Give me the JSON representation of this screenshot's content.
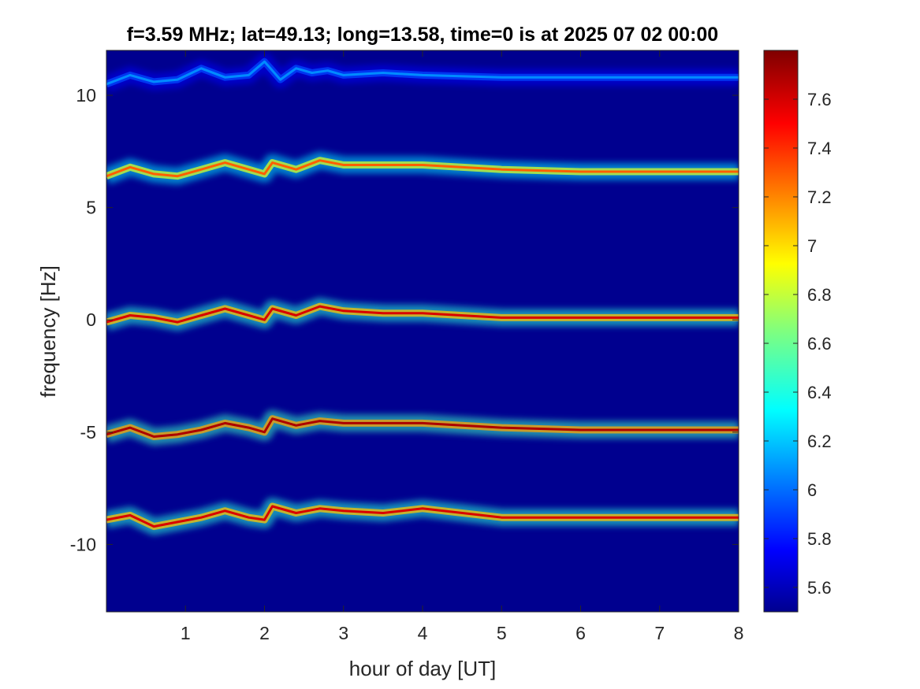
{
  "chart_data": {
    "type": "heatmap",
    "title": "f=3.59 MHz;  lat=49.13; long=13.58, time=0 is at 2025 07 02 00:00",
    "xlabel": "hour of day [UT]",
    "ylabel": "frequency [Hz]",
    "xlim": [
      0,
      8
    ],
    "ylim": [
      -13,
      12
    ],
    "xticks": [
      1,
      2,
      3,
      4,
      5,
      6,
      7,
      8
    ],
    "xtick_labels": [
      "1",
      "2",
      "3",
      "4",
      "5",
      "6",
      "7",
      "8"
    ],
    "yticks": [
      10,
      5,
      0,
      -5,
      -10
    ],
    "ytick_labels": [
      "10",
      "5",
      "0",
      "-5",
      "-10"
    ],
    "colormap": "jet",
    "background_color": "#00008f",
    "colorbar": {
      "range": [
        5.5,
        7.8
      ],
      "ticks": [
        5.6,
        5.8,
        6,
        6.2,
        6.4,
        6.6,
        6.8,
        7,
        7.2,
        7.4,
        7.6
      ],
      "tick_labels": [
        "5.6",
        "5.8",
        "6",
        "6.2",
        "6.4",
        "6.6",
        "6.8",
        "7",
        "7.2",
        "7.4",
        "7.6"
      ]
    },
    "series": [
      {
        "x": [
          0,
          0.3,
          0.6,
          0.9,
          1.2,
          1.5,
          1.8,
          2.0,
          2.1,
          2.4,
          2.7,
          3.0,
          3.5,
          4.0,
          5.0,
          6.0,
          7.0,
          8.0
        ],
        "y": [
          -8.9,
          -8.7,
          -9.2,
          -9.0,
          -8.8,
          -8.5,
          -8.8,
          -8.9,
          -8.3,
          -8.6,
          -8.4,
          -8.5,
          -8.6,
          -8.4,
          -8.8,
          -8.8,
          -8.8,
          -8.8
        ],
        "intensity": 7.6
      },
      {
        "x": [
          0,
          0.3,
          0.6,
          0.9,
          1.2,
          1.5,
          1.8,
          2.0,
          2.1,
          2.4,
          2.7,
          3.0,
          3.5,
          4.0,
          5.0,
          6.0,
          7.0,
          8.0
        ],
        "y": [
          -5.1,
          -4.8,
          -5.2,
          -5.1,
          -4.9,
          -4.6,
          -4.8,
          -5.0,
          -4.4,
          -4.7,
          -4.5,
          -4.6,
          -4.6,
          -4.6,
          -4.8,
          -4.9,
          -4.9,
          -4.9
        ],
        "intensity": 7.7
      },
      {
        "x": [
          0,
          0.3,
          0.6,
          0.9,
          1.2,
          1.5,
          1.8,
          2.0,
          2.1,
          2.4,
          2.7,
          3.0,
          3.5,
          4.0,
          5.0,
          6.0,
          7.0,
          8.0
        ],
        "y": [
          -0.1,
          0.2,
          0.1,
          -0.1,
          0.2,
          0.5,
          0.2,
          0.0,
          0.5,
          0.2,
          0.6,
          0.4,
          0.3,
          0.3,
          0.1,
          0.1,
          0.1,
          0.1
        ],
        "intensity": 7.6
      },
      {
        "x": [
          0,
          0.3,
          0.6,
          0.9,
          1.2,
          1.5,
          1.8,
          2.0,
          2.1,
          2.4,
          2.7,
          3.0,
          3.5,
          4.0,
          5.0,
          6.0,
          7.0,
          8.0
        ],
        "y": [
          6.4,
          6.8,
          6.5,
          6.4,
          6.7,
          7.0,
          6.7,
          6.5,
          7.0,
          6.7,
          7.1,
          6.9,
          6.9,
          6.9,
          6.7,
          6.6,
          6.6,
          6.6
        ],
        "intensity": 7.3
      },
      {
        "x": [
          0,
          0.3,
          0.6,
          0.9,
          1.2,
          1.5,
          1.8,
          2.0,
          2.2,
          2.4,
          2.6,
          2.8,
          3.0,
          3.5,
          4.0,
          5.0,
          6.0,
          7.0,
          8.0
        ],
        "y": [
          10.5,
          10.9,
          10.6,
          10.7,
          11.2,
          10.8,
          10.9,
          11.5,
          10.7,
          11.2,
          11.0,
          11.1,
          10.9,
          11.0,
          10.9,
          10.8,
          10.8,
          10.8,
          10.8
        ],
        "intensity": 6.1
      }
    ]
  }
}
